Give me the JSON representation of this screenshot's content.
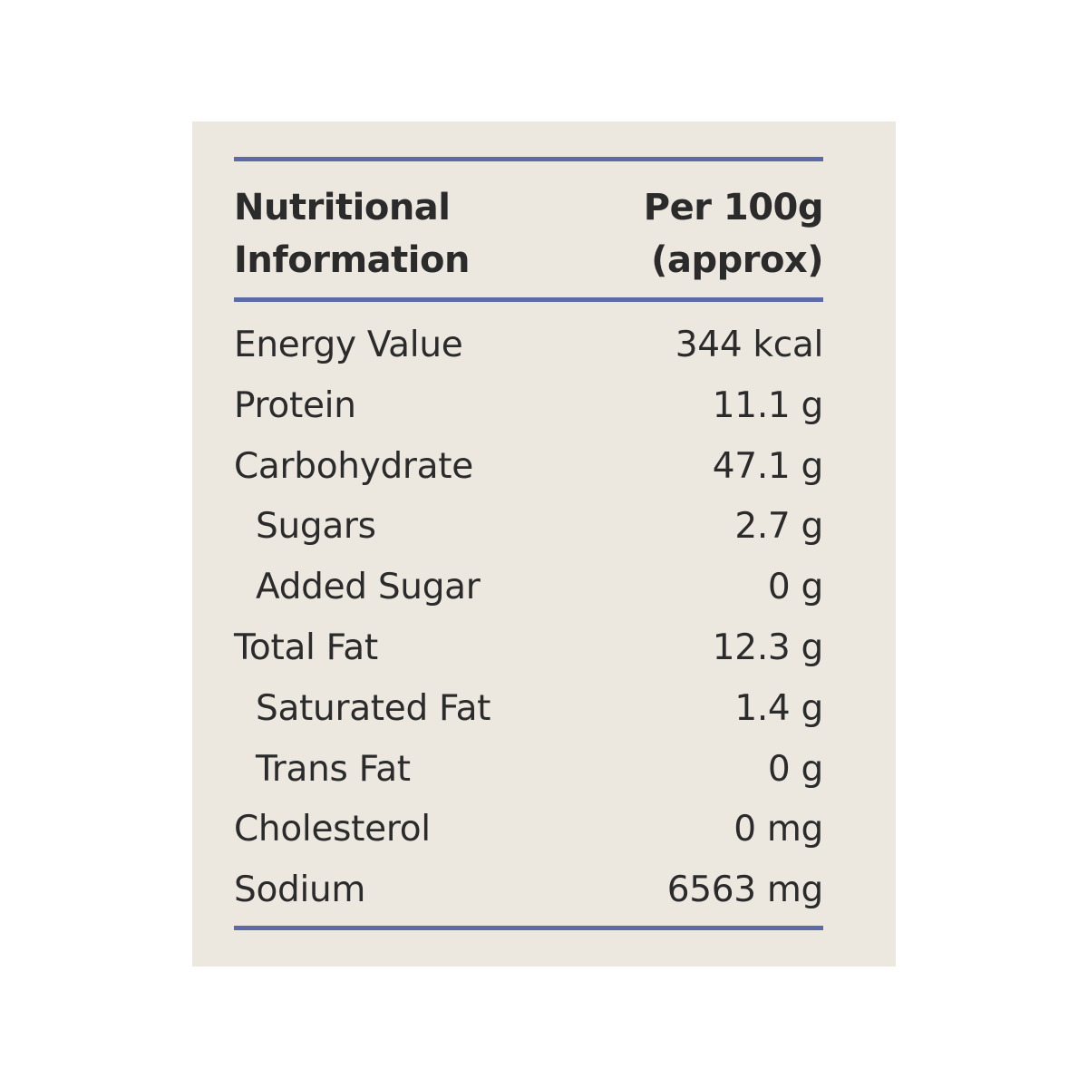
{
  "table": {
    "header": {
      "left": [
        "Nutritional",
        "Information"
      ],
      "right": [
        "Per 100g",
        "(approx)"
      ]
    },
    "rows": [
      {
        "label": "Energy Value",
        "value": "344 kcal"
      },
      {
        "label": "Protein",
        "value": "11.1 g"
      },
      {
        "label": "Carbohydrate",
        "value": "47.1 g",
        "children": [
          {
            "label": "Sugars",
            "value": "2.7 g"
          },
          {
            "label": "Added Sugar",
            "value": "0 g"
          }
        ]
      },
      {
        "label": "Total Fat",
        "value": "12.3 g",
        "children": [
          {
            "label": "Saturated Fat",
            "value": "1.4 g"
          },
          {
            "label": "Trans Fat",
            "value": "0 g"
          }
        ]
      },
      {
        "label": "Cholesterol",
        "value": "0 mg"
      },
      {
        "label": "Sodium",
        "value": "6563 mg"
      }
    ]
  }
}
